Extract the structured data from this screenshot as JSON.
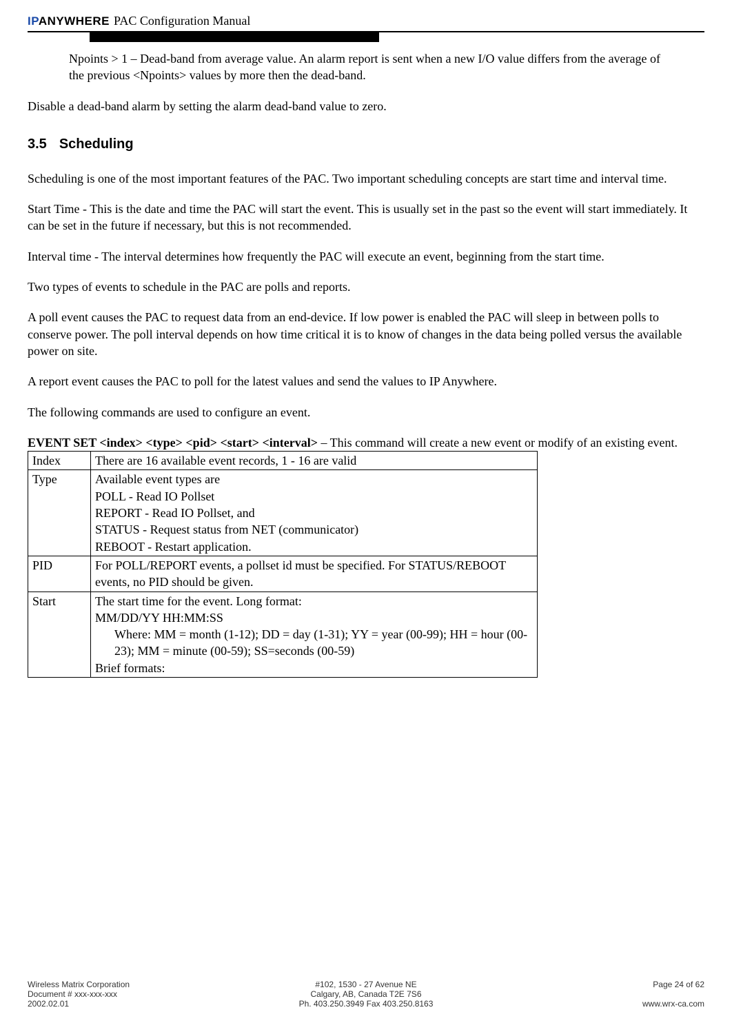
{
  "header": {
    "logo_ip": "IP",
    "logo_anywhere": "ANYWHERE",
    "title": "PAC Configuration Manual"
  },
  "body": {
    "npoints_para": "Npoints > 1 – Dead-band from average value.  An alarm report is sent when a new I/O value differs from the average of the previous <Npoints> values by more then the dead-band.",
    "disable_para": "Disable a dead-band alarm by setting the alarm dead-band value to zero.",
    "section_num": "3.5",
    "section_title": "Scheduling",
    "p1": "Scheduling is one of the most important features of the PAC. Two important scheduling concepts are start time and interval time.",
    "p2": "Start Time - This is the date and time the PAC will start the event.  This is usually set in the past so the event will start immediately.  It can be set in the future if necessary, but this is not recommended.",
    "p3": "Interval time - The interval determines how frequently the PAC will execute an event, beginning from the start time.",
    "p4": "Two types of events to schedule in the PAC are polls and reports.",
    "p5": "A poll event causes the PAC to request data from an end-device.  If low power is enabled the PAC will sleep in between polls to conserve power.  The poll interval depends on how time critical it is to know of changes in the data being polled versus the available power on site.",
    "p6": "A report event causes the PAC to poll for the latest values and send the values to IP Anywhere.",
    "p7": "The following commands are used to configure an event.",
    "cmd_bold": "EVENT SET <index> <type> <pid> <start> <interval>",
    "cmd_rest": " – This command will create a new event or modify of an existing event."
  },
  "table": {
    "rows": [
      {
        "label": "Index",
        "lines": [
          "There are 16 available event records, 1 - 16 are valid"
        ]
      },
      {
        "label": "Type",
        "lines": [
          "Available event types are",
          "POLL - Read IO Pollset",
          "REPORT - Read IO Pollset, and",
          "STATUS - Request status from NET (communicator)",
          "REBOOT - Restart application."
        ]
      },
      {
        "label": "PID",
        "lines": [
          "For POLL/REPORT events, a pollset id must be specified. For STATUS/REBOOT events, no PID should be given."
        ]
      },
      {
        "label": "Start",
        "lines": [
          "The start time for the event. Long format:",
          "MM/DD/YY HH:MM:SS"
        ],
        "indented": [
          "Where: MM = month (1-12); DD = day (1-31); YY = year (00-99); HH = hour (00-23); MM = minute (00-59); SS=seconds (00-59)"
        ],
        "after": [
          "Brief formats:"
        ]
      }
    ]
  },
  "footer": {
    "left1": "Wireless Matrix Corporation",
    "left2": "Document # xxx-xxx-xxx",
    "left3": "2002.02.01",
    "center1": "#102, 1530 - 27 Avenue NE",
    "center2": "Calgary, AB, Canada  T2E 7S6",
    "center3": "Ph. 403.250.3949  Fax 403.250.8163",
    "right1": "Page 24 of 62",
    "right2": "www.wrx-ca.com"
  }
}
